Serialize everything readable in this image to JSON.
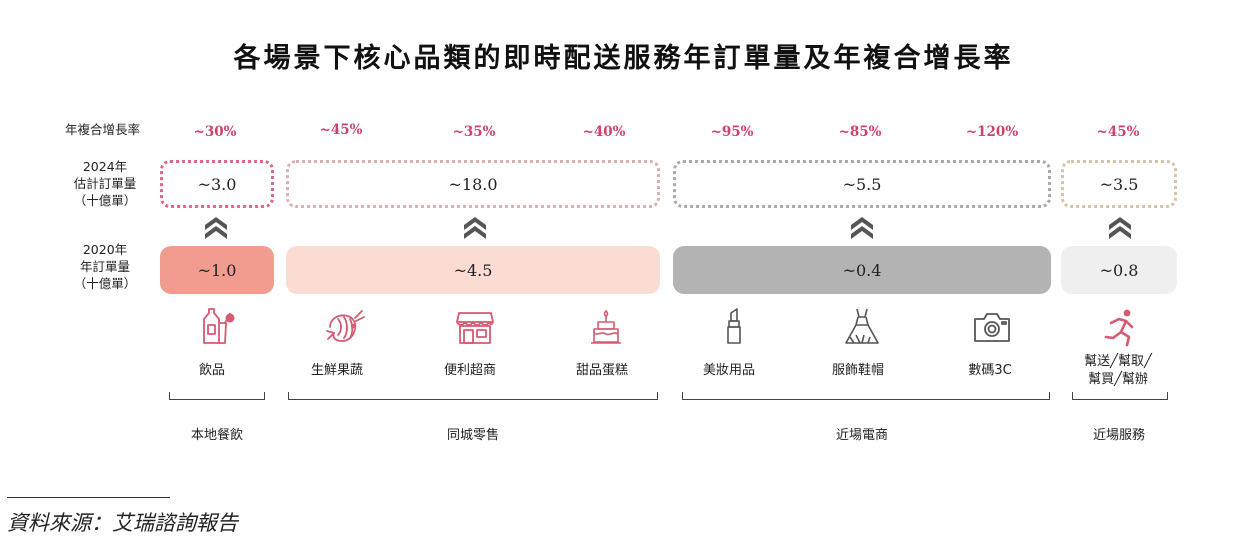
{
  "chart_data": {
    "type": "table",
    "title": "各場景下核心品類的即時配送服務年訂單量及年複合增長率",
    "row_labels": {
      "cagr": "年複合增長率",
      "orders_2024": [
        "2024年",
        "估計訂單量",
        "（十億單）"
      ],
      "orders_2020": [
        "2020年",
        "年訂單量",
        "（十億單）"
      ]
    },
    "categories": [
      "飲品",
      "生鮮果蔬",
      "便利超商",
      "甜品蛋糕",
      "美妝用品",
      "服飾鞋帽",
      "數碼3C",
      "幫送╱幫取╱幫買╱幫辦"
    ],
    "category_lines": [
      [
        "飲品"
      ],
      [
        "生鮮果蔬"
      ],
      [
        "便利超商"
      ],
      [
        "甜品蛋糕"
      ],
      [
        "美妝用品"
      ],
      [
        "服飾鞋帽"
      ],
      [
        "數碼3C"
      ],
      [
        "幫送╱幫取╱",
        "幫買╱幫辦"
      ]
    ],
    "cagr": [
      "~30%",
      "~45%",
      "~35%",
      "~40%",
      "~95%",
      "~85%",
      "~120%",
      "~45%"
    ],
    "groups": [
      {
        "name": "本地餐飲",
        "orders_2024": "~3.0",
        "orders_2020": "~1.0",
        "color_2020": "#f29c8f",
        "dot_color": "#d9688a"
      },
      {
        "name": "同城零售",
        "orders_2024": "~18.0",
        "orders_2020": "~4.5",
        "color_2020": "#fbdcd3",
        "dot_color": "#d8b0b0"
      },
      {
        "name": "近場電商",
        "orders_2024": "~5.5",
        "orders_2020": "~0.4",
        "color_2020": "#b3b3b3",
        "dot_color": "#a9a9a9"
      },
      {
        "name": "近場服務",
        "orders_2024": "~3.5",
        "orders_2020": "~0.8",
        "color_2020": "#f0eff0",
        "dot_color": "#d4c4a6"
      }
    ],
    "cagr_color": "#d0416a",
    "icon_color": "#d65a72"
  },
  "icons": [
    "drinks-icon",
    "seafood-icon",
    "store-icon",
    "cake-icon",
    "lipstick-icon",
    "dress-icon",
    "camera-icon",
    "runner-icon"
  ],
  "footer": {
    "source": "資料來源：艾瑞諮詢報告"
  }
}
